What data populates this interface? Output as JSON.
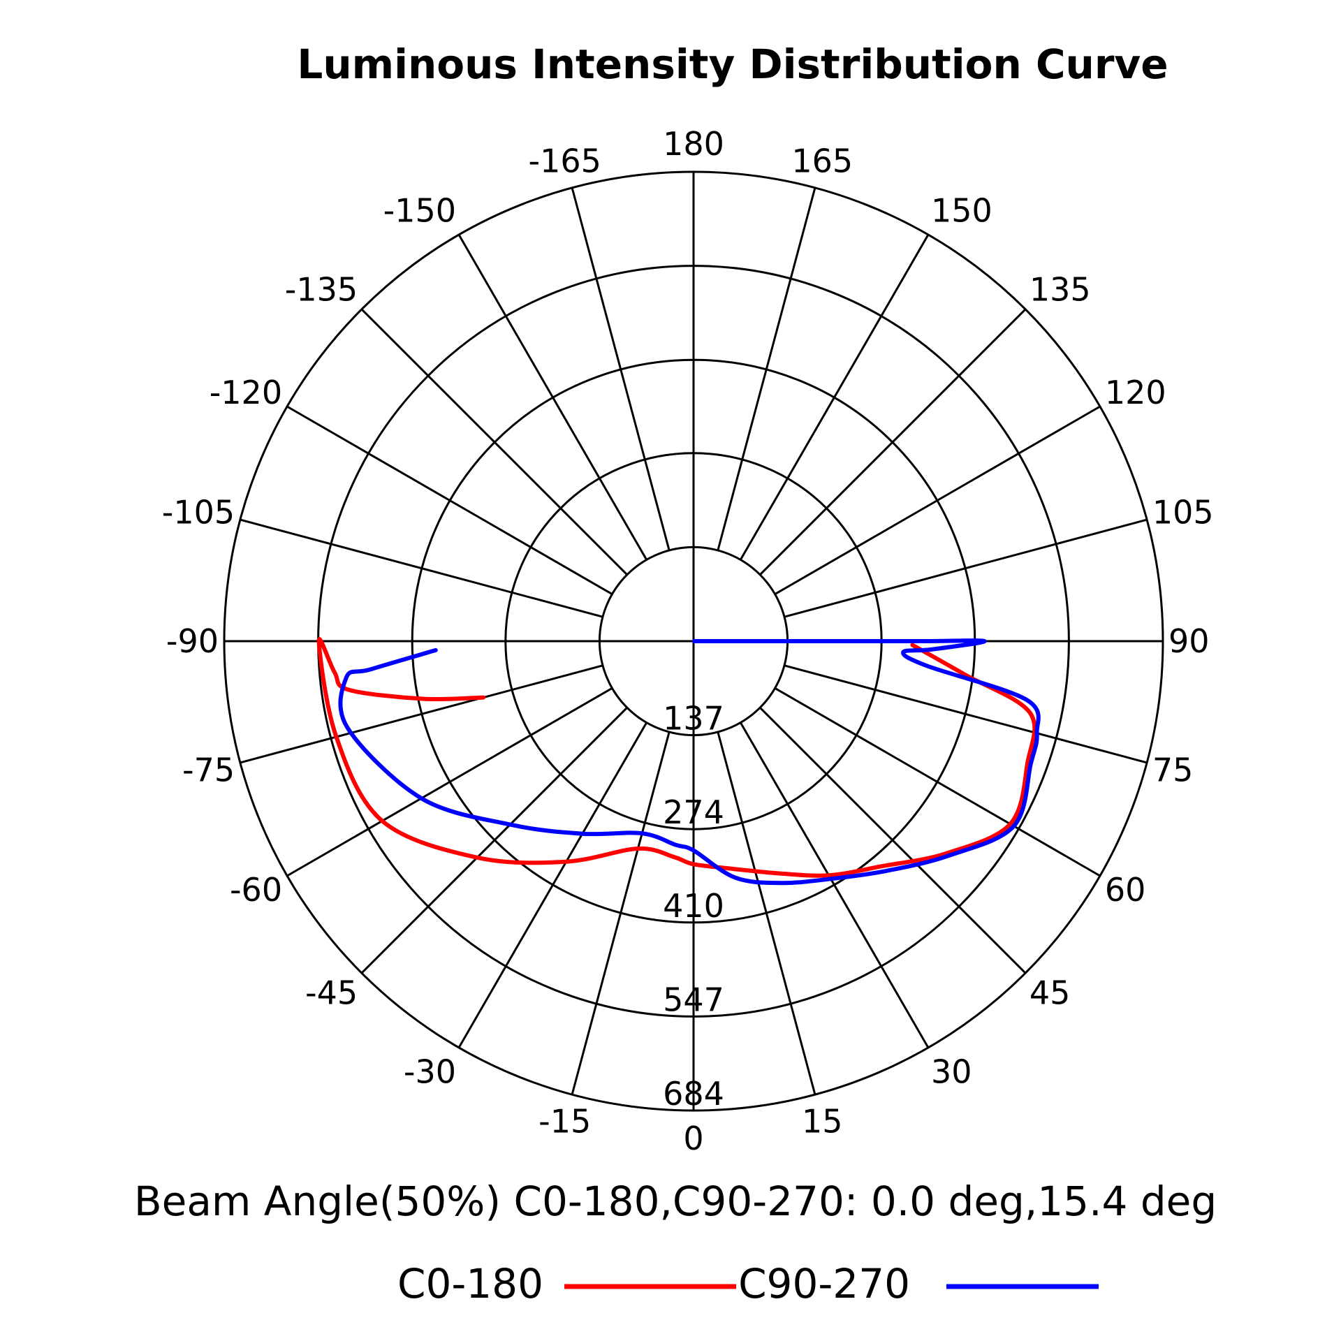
{
  "chart_data": {
    "type": "polar",
    "title": "Luminous Intensity Distribution Curve",
    "angle_labels": [
      "0",
      "15",
      "30",
      "45",
      "60",
      "75",
      "90",
      "105",
      "120",
      "135",
      "150",
      "165",
      "180",
      "-165",
      "-150",
      "-135",
      "-120",
      "-105",
      "-90",
      "-75",
      "-60",
      "-45",
      "-30",
      "-15"
    ],
    "radial_labels": [
      "137",
      "274",
      "410",
      "547",
      "684"
    ],
    "radial_values": [
      137,
      274,
      410,
      547,
      684
    ],
    "rmax": 684,
    "grid": true,
    "beam_angle_text": "Beam Angle(50%) C0-180,C90-270: 0.0 deg,15.4 deg",
    "series": [
      {
        "name": "C0-180",
        "color": "#ff0000",
        "points": [
          [
            -75,
            317
          ],
          [
            -78,
            404
          ],
          [
            -82,
            508
          ],
          [
            -85,
            525
          ],
          [
            -90,
            546
          ],
          [
            -75,
            539
          ],
          [
            -60,
            524
          ],
          [
            -45,
            446
          ],
          [
            -30,
            371
          ],
          [
            -15,
            313
          ],
          [
            -5,
            316
          ],
          [
            0,
            325
          ],
          [
            10,
            337
          ],
          [
            20,
            360
          ],
          [
            30,
            394
          ],
          [
            40,
            428
          ],
          [
            50,
            481
          ],
          [
            60,
            533
          ],
          [
            70,
            518
          ],
          [
            78,
            501
          ],
          [
            83,
            398
          ],
          [
            89,
            319
          ]
        ]
      },
      {
        "name": "C90-270",
        "color": "#0000ff",
        "points": [
          [
            -88,
            376
          ],
          [
            -85,
            473
          ],
          [
            -84,
            509
          ],
          [
            -76,
            520
          ],
          [
            -60,
            458
          ],
          [
            -45,
            378
          ],
          [
            -30,
            324
          ],
          [
            -15,
            290
          ],
          [
            -5,
            298
          ],
          [
            0,
            305
          ],
          [
            10,
            350
          ],
          [
            20,
            375
          ],
          [
            30,
            400
          ],
          [
            40,
            437
          ],
          [
            50,
            486
          ],
          [
            60,
            539
          ],
          [
            70,
            523
          ],
          [
            75,
            518
          ],
          [
            80,
            493
          ],
          [
            84,
            341
          ],
          [
            87,
            306
          ],
          [
            88,
            347
          ],
          [
            90,
            424
          ],
          [
            90,
            336
          ],
          [
            90,
            209
          ],
          [
            90,
            1
          ]
        ]
      }
    ]
  }
}
